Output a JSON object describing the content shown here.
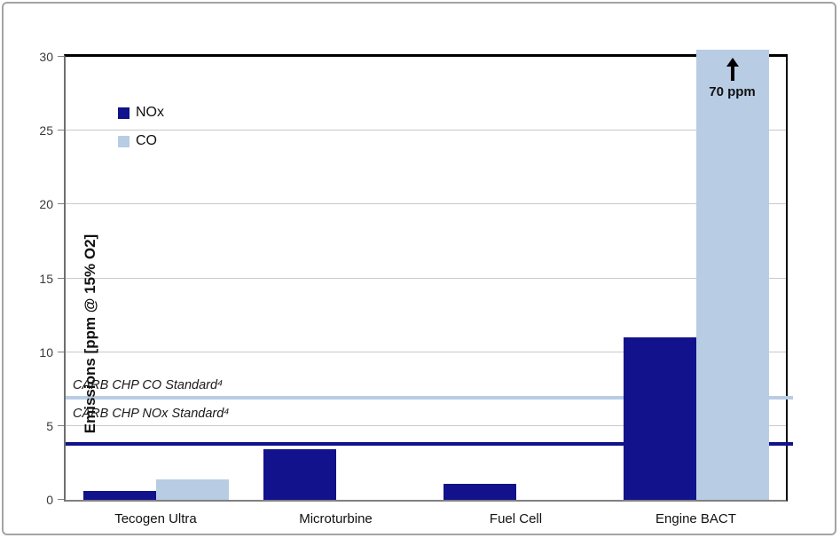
{
  "chart_data": {
    "type": "bar",
    "title": "",
    "xlabel": "",
    "ylabel": "Emissions [ppm @ 15% O2]",
    "ylim": [
      0,
      30
    ],
    "yticks": [
      0,
      5,
      10,
      15,
      20,
      25,
      30
    ],
    "grid": true,
    "legend_position": "inside-top-left",
    "categories": [
      "Tecogen Ultra",
      "Microturbine",
      "Fuel Cell",
      "Engine BACT"
    ],
    "series": [
      {
        "name": "NOx",
        "color": "#12128C",
        "values": [
          0.6,
          3.4,
          1.1,
          11
        ]
      },
      {
        "name": "CO",
        "color": "#B8CCE4",
        "values": [
          1.4,
          0,
          0,
          70
        ]
      }
    ],
    "reference_lines": [
      {
        "label": "CARB CHP CO Standard⁴",
        "value": 6.9,
        "color": "#B8CCE4",
        "thickness": 4
      },
      {
        "label": "CARB CHP NOx Standard⁴",
        "value": 3.8,
        "color": "#12128C",
        "thickness": 4
      }
    ],
    "annotations": [
      {
        "symbol": "up-arrow",
        "text": "70 ppm",
        "target_category": "Engine BACT",
        "target_series": "CO",
        "note": "bar exceeds axis maximum"
      }
    ]
  },
  "colors": {
    "nox": "#12128C",
    "co": "#B8CCE4",
    "gridline": "#c9c9c9",
    "axis": "#808080",
    "plot_border": "#000000"
  }
}
